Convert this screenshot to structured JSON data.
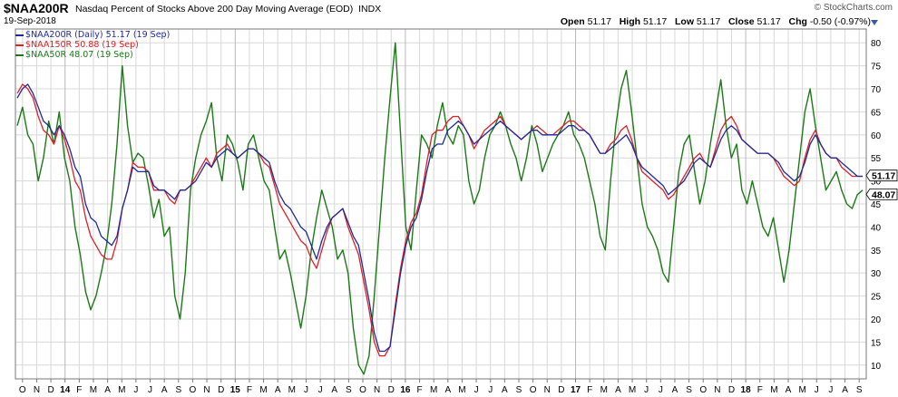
{
  "header": {
    "symbol": "$NAA200R",
    "description": "Nasdaq Percent of Stocks Above 200 Day Moving Average (EOD)",
    "exchange": "INDX",
    "date": "19-Sep-2018",
    "brand": "© StockCharts.com",
    "open_label": "Open",
    "open": "51.17",
    "high_label": "High",
    "high": "51.17",
    "low_label": "Low",
    "low": "51.17",
    "close_label": "Close",
    "close": "51.17",
    "chg_label": "Chg",
    "chg": "-0.50 (-0.97%)"
  },
  "legend": [
    "$NAA200R (Daily) 51.17 (19 Sep)",
    "$NAA150R 50.88 (19 Sep)",
    "$NAA50R 48.07 (19 Sep)"
  ],
  "colors": {
    "naa200r": "#1f2a9b",
    "naa150r": "#e01f26",
    "naa50r": "#1b7a16",
    "grid": "#d8d8d8",
    "axis": "#7a7a7a"
  },
  "chart_data": {
    "type": "line",
    "y_ticks": [
      10,
      15,
      20,
      25,
      30,
      35,
      40,
      45,
      50,
      55,
      60,
      65,
      70,
      75,
      80
    ],
    "ylim": [
      7,
      83
    ],
    "grid": true,
    "legend_position": "top-left",
    "value_labels": [
      {
        "text": "51.17",
        "value": 51.17
      },
      {
        "text": "48.07",
        "value": 48.07
      }
    ],
    "month_labels": [
      "O",
      "N",
      "D",
      "14",
      "F",
      "M",
      "A",
      "M",
      "J",
      "J",
      "A",
      "S",
      "O",
      "N",
      "D",
      "15",
      "F",
      "M",
      "A",
      "M",
      "J",
      "J",
      "A",
      "S",
      "O",
      "N",
      "D",
      "16",
      "F",
      "M",
      "A",
      "M",
      "J",
      "J",
      "A",
      "S",
      "O",
      "N",
      "D",
      "17",
      "F",
      "M",
      "A",
      "M",
      "J",
      "J",
      "A",
      "S",
      "O",
      "N",
      "D",
      "18",
      "F",
      "M",
      "A",
      "M",
      "J",
      "J",
      "A",
      "S"
    ],
    "series": [
      {
        "name": "$NAA200R",
        "values": [
          68,
          70,
          71,
          69,
          66,
          63,
          62,
          60,
          62,
          60,
          57,
          53,
          51,
          45,
          42,
          41,
          38,
          37,
          36,
          38,
          44,
          48,
          53,
          52,
          52,
          52,
          49,
          48,
          48,
          47,
          46,
          48,
          48,
          49,
          50,
          52,
          54,
          53,
          55,
          56,
          57,
          56,
          55,
          56,
          57,
          57,
          56,
          55,
          54,
          50,
          47,
          45,
          44,
          42,
          40,
          39,
          36,
          33,
          37,
          40,
          42,
          43,
          44,
          41,
          38,
          36,
          30,
          24,
          17,
          13,
          13,
          14,
          22,
          30,
          36,
          40,
          42,
          46,
          52,
          57,
          58,
          58,
          61,
          62,
          63,
          62,
          60,
          58,
          59,
          60,
          61,
          62,
          63,
          62,
          61,
          60,
          59,
          60,
          61,
          61,
          60,
          60,
          60,
          60,
          61,
          62,
          62,
          61,
          61,
          60,
          58,
          56,
          56,
          57,
          58,
          59,
          60,
          58,
          55,
          53,
          52,
          51,
          50,
          49,
          47,
          48,
          49,
          50,
          52,
          54,
          55,
          54,
          53,
          56,
          59,
          61,
          62,
          61,
          59,
          58,
          57,
          56,
          56,
          56,
          55,
          54,
          52,
          51,
          50,
          51,
          54,
          58,
          60,
          58,
          56,
          55,
          55,
          54,
          53,
          52,
          51,
          51
        ]
      },
      {
        "name": "$NAA150R",
        "values": [
          69,
          71,
          70,
          68,
          64,
          61,
          60,
          58,
          62,
          59,
          55,
          50,
          48,
          42,
          38,
          36,
          34,
          33,
          33,
          37,
          44,
          48,
          54,
          53,
          53,
          52,
          48,
          48,
          48,
          46,
          45,
          48,
          48,
          49,
          51,
          53,
          55,
          53,
          56,
          57,
          58,
          56,
          55,
          56,
          57,
          57,
          56,
          54,
          53,
          49,
          45,
          43,
          41,
          39,
          37,
          36,
          33,
          31,
          35,
          39,
          42,
          43,
          44,
          40,
          37,
          34,
          28,
          22,
          15,
          12,
          12,
          14,
          23,
          31,
          37,
          41,
          43,
          47,
          54,
          60,
          61,
          61,
          63,
          64,
          64,
          62,
          60,
          57,
          59,
          61,
          62,
          63,
          64,
          62,
          61,
          60,
          59,
          60,
          61,
          62,
          61,
          60,
          60,
          61,
          62,
          63,
          63,
          62,
          61,
          60,
          58,
          56,
          56,
          58,
          59,
          61,
          62,
          59,
          55,
          52,
          51,
          50,
          49,
          48,
          46,
          47,
          49,
          51,
          53,
          55,
          56,
          54,
          53,
          57,
          61,
          63,
          64,
          62,
          59,
          58,
          57,
          56,
          56,
          56,
          55,
          53,
          51,
          50,
          49,
          50,
          55,
          59,
          61,
          58,
          56,
          55,
          55,
          53,
          52,
          51,
          51,
          51
        ]
      },
      {
        "name": "$NAA50R",
        "values": [
          62,
          66,
          60,
          58,
          50,
          55,
          63,
          58,
          65,
          55,
          50,
          40,
          34,
          26,
          22,
          25,
          30,
          36,
          45,
          58,
          75,
          62,
          54,
          56,
          55,
          49,
          42,
          46,
          38,
          40,
          25,
          20,
          30,
          48,
          55,
          60,
          63,
          67,
          55,
          50,
          60,
          58,
          54,
          48,
          58,
          60,
          55,
          50,
          48,
          40,
          33,
          35,
          30,
          24,
          18,
          25,
          35,
          42,
          48,
          44,
          40,
          33,
          35,
          30,
          18,
          10,
          8,
          12,
          25,
          40,
          55,
          68,
          80,
          60,
          40,
          35,
          48,
          60,
          58,
          55,
          62,
          67,
          60,
          58,
          62,
          60,
          50,
          45,
          48,
          55,
          60,
          62,
          65,
          62,
          58,
          55,
          50,
          55,
          62,
          58,
          52,
          55,
          58,
          60,
          62,
          65,
          60,
          58,
          55,
          50,
          45,
          38,
          35,
          50,
          62,
          70,
          74,
          65,
          55,
          45,
          40,
          38,
          35,
          30,
          28,
          40,
          52,
          58,
          60,
          52,
          45,
          50,
          58,
          65,
          72,
          62,
          55,
          58,
          48,
          45,
          50,
          45,
          40,
          38,
          42,
          35,
          28,
          35,
          45,
          55,
          65,
          70,
          62,
          55,
          48,
          50,
          52,
          48,
          45,
          44,
          47,
          48
        ]
      }
    ]
  }
}
